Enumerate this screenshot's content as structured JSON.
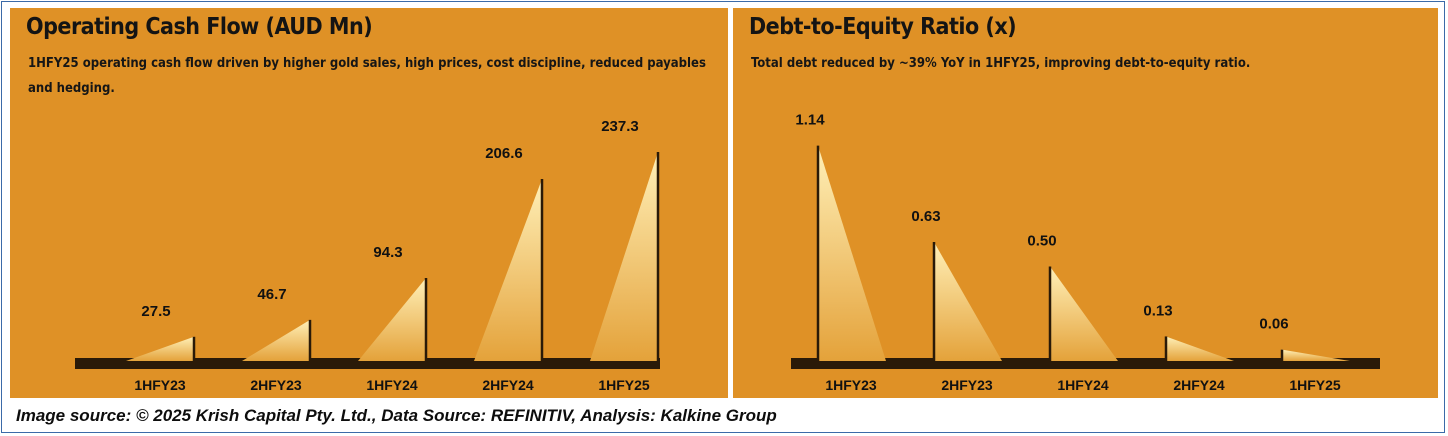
{
  "caption": "Image source: © 2025 Krish Capital Pty. Ltd., Data Source: REFINITIV, Analysis: Kalkine Group",
  "colors": {
    "panel_bg": "#df9126",
    "spike_tip": "#fff0b8",
    "spike_base": "#e4a23a",
    "baseline": "#2a1a08",
    "frame": "#3b6aa8"
  },
  "chart_data": [
    {
      "type": "bar",
      "title": "Operating Cash Flow (AUD Mn)",
      "subtitle": "1HFY25 operating cash flow driven by higher gold sales, high prices, cost discipline, reduced payables and hedging.",
      "categories": [
        "1HFY23",
        "2HFY23",
        "1HFY24",
        "2HFY24",
        "1HFY25"
      ],
      "values": [
        27.5,
        46.7,
        94.3,
        206.6,
        237.3
      ],
      "value_labels": [
        "27.5",
        "46.7",
        "94.3",
        "206.6",
        "237.3"
      ],
      "xlabel": "",
      "ylabel": "",
      "ylim": [
        0,
        260
      ],
      "grid": false,
      "legend": "none",
      "spike_orientation": "right-vertical"
    },
    {
      "type": "bar",
      "title": "Debt-to-Equity Ratio (x)",
      "subtitle": "Total debt reduced by ~39% YoY in 1HFY25, improving debt-to-equity ratio.",
      "categories": [
        "1HFY23",
        "2HFY23",
        "1HFY24",
        "2HFY24",
        "1HFY25"
      ],
      "values": [
        1.14,
        0.63,
        0.5,
        0.13,
        0.06
      ],
      "value_labels": [
        "1.14",
        "0.63",
        "0.50",
        "0.13",
        "0.06"
      ],
      "xlabel": "",
      "ylabel": "",
      "ylim": [
        0,
        1.26
      ],
      "grid": false,
      "legend": "none",
      "spike_orientation": "left-vertical"
    }
  ]
}
